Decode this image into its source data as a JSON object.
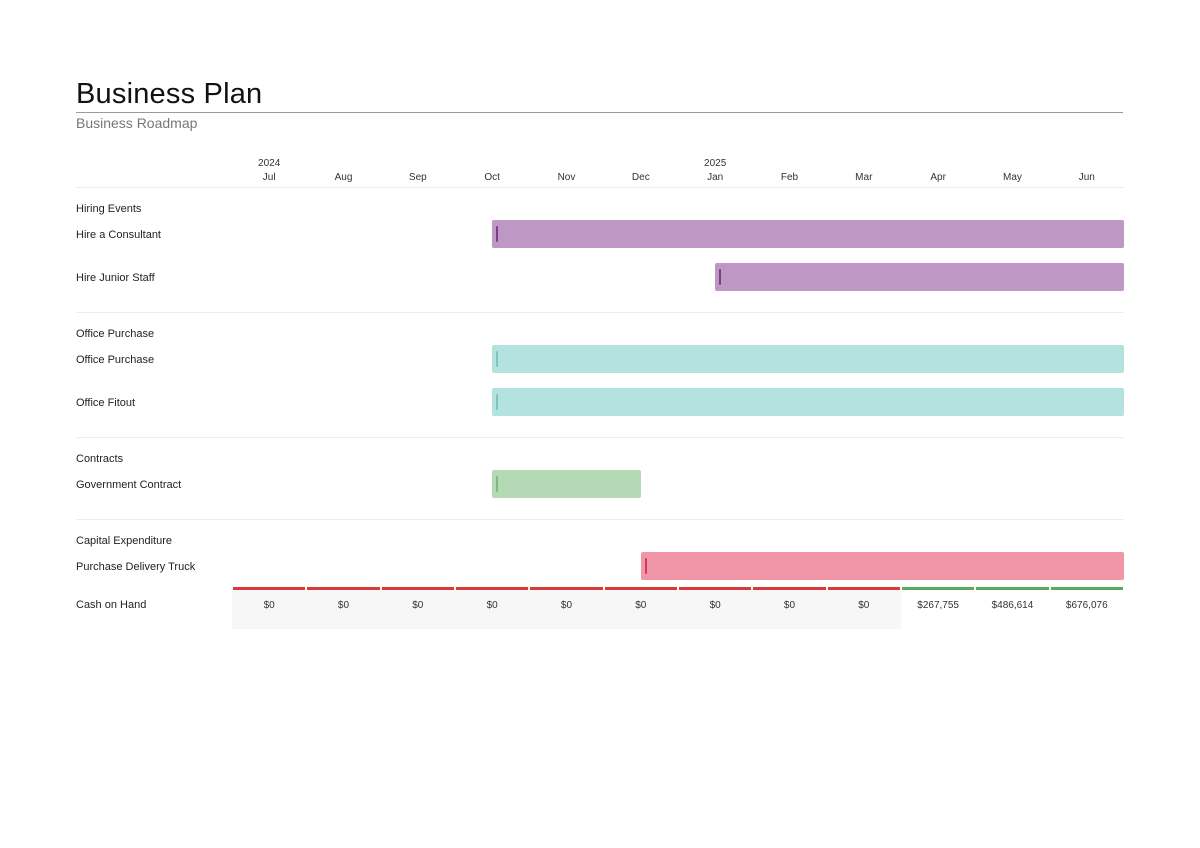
{
  "header": {
    "title": "Business Plan",
    "subtitle": "Business Roadmap"
  },
  "colors": {
    "hiring": "#bf97c4",
    "hiring_marker": "#7a3f86",
    "office": "#b4e2df",
    "office_marker": "#7cc4bf",
    "contracts": "#b4d9b4",
    "contracts_marker": "#7fb87f",
    "capex": "#f096a6",
    "capex_marker": "#d33a55",
    "cash_negative": "#d63a3a",
    "cash_positive": "#5ea75e"
  },
  "chart_data": {
    "type": "gantt",
    "title": "Business Plan",
    "subtitle": "Business Roadmap",
    "timeline": {
      "start": "2024-07",
      "end": "2025-06",
      "years": [
        {
          "label": "2024",
          "month": "2024-07"
        },
        {
          "label": "2025",
          "month": "2025-01"
        }
      ],
      "months": [
        "Jul",
        "Aug",
        "Sep",
        "Oct",
        "Nov",
        "Dec",
        "Jan",
        "Feb",
        "Mar",
        "Apr",
        "May",
        "Jun"
      ]
    },
    "groups": [
      {
        "label": "Hiring Events",
        "color_key": "hiring",
        "tasks": [
          {
            "label": "Hire a Consultant",
            "start": "2024-10",
            "end": "2025-06"
          },
          {
            "label": "Hire Junior Staff",
            "start": "2025-01",
            "end": "2025-06"
          }
        ]
      },
      {
        "label": "Office Purchase",
        "color_key": "office",
        "tasks": [
          {
            "label": "Office Purchase",
            "start": "2024-10",
            "end": "2025-06"
          },
          {
            "label": "Office Fitout",
            "start": "2024-10",
            "end": "2025-06"
          }
        ]
      },
      {
        "label": "Contracts",
        "color_key": "contracts",
        "tasks": [
          {
            "label": "Government Contract",
            "start": "2024-10",
            "end": "2024-12"
          }
        ]
      },
      {
        "label": "Capital Expenditure",
        "color_key": "capex",
        "tasks": [
          {
            "label": "Purchase Delivery Truck",
            "start": "2024-12",
            "end": "2025-06"
          }
        ]
      }
    ],
    "cash_on_hand": {
      "label": "Cash on Hand",
      "values": [
        "$0",
        "$0",
        "$0",
        "$0",
        "$0",
        "$0",
        "$0",
        "$0",
        "$0",
        "$267,755",
        "$486,614",
        "$676,076"
      ]
    }
  }
}
